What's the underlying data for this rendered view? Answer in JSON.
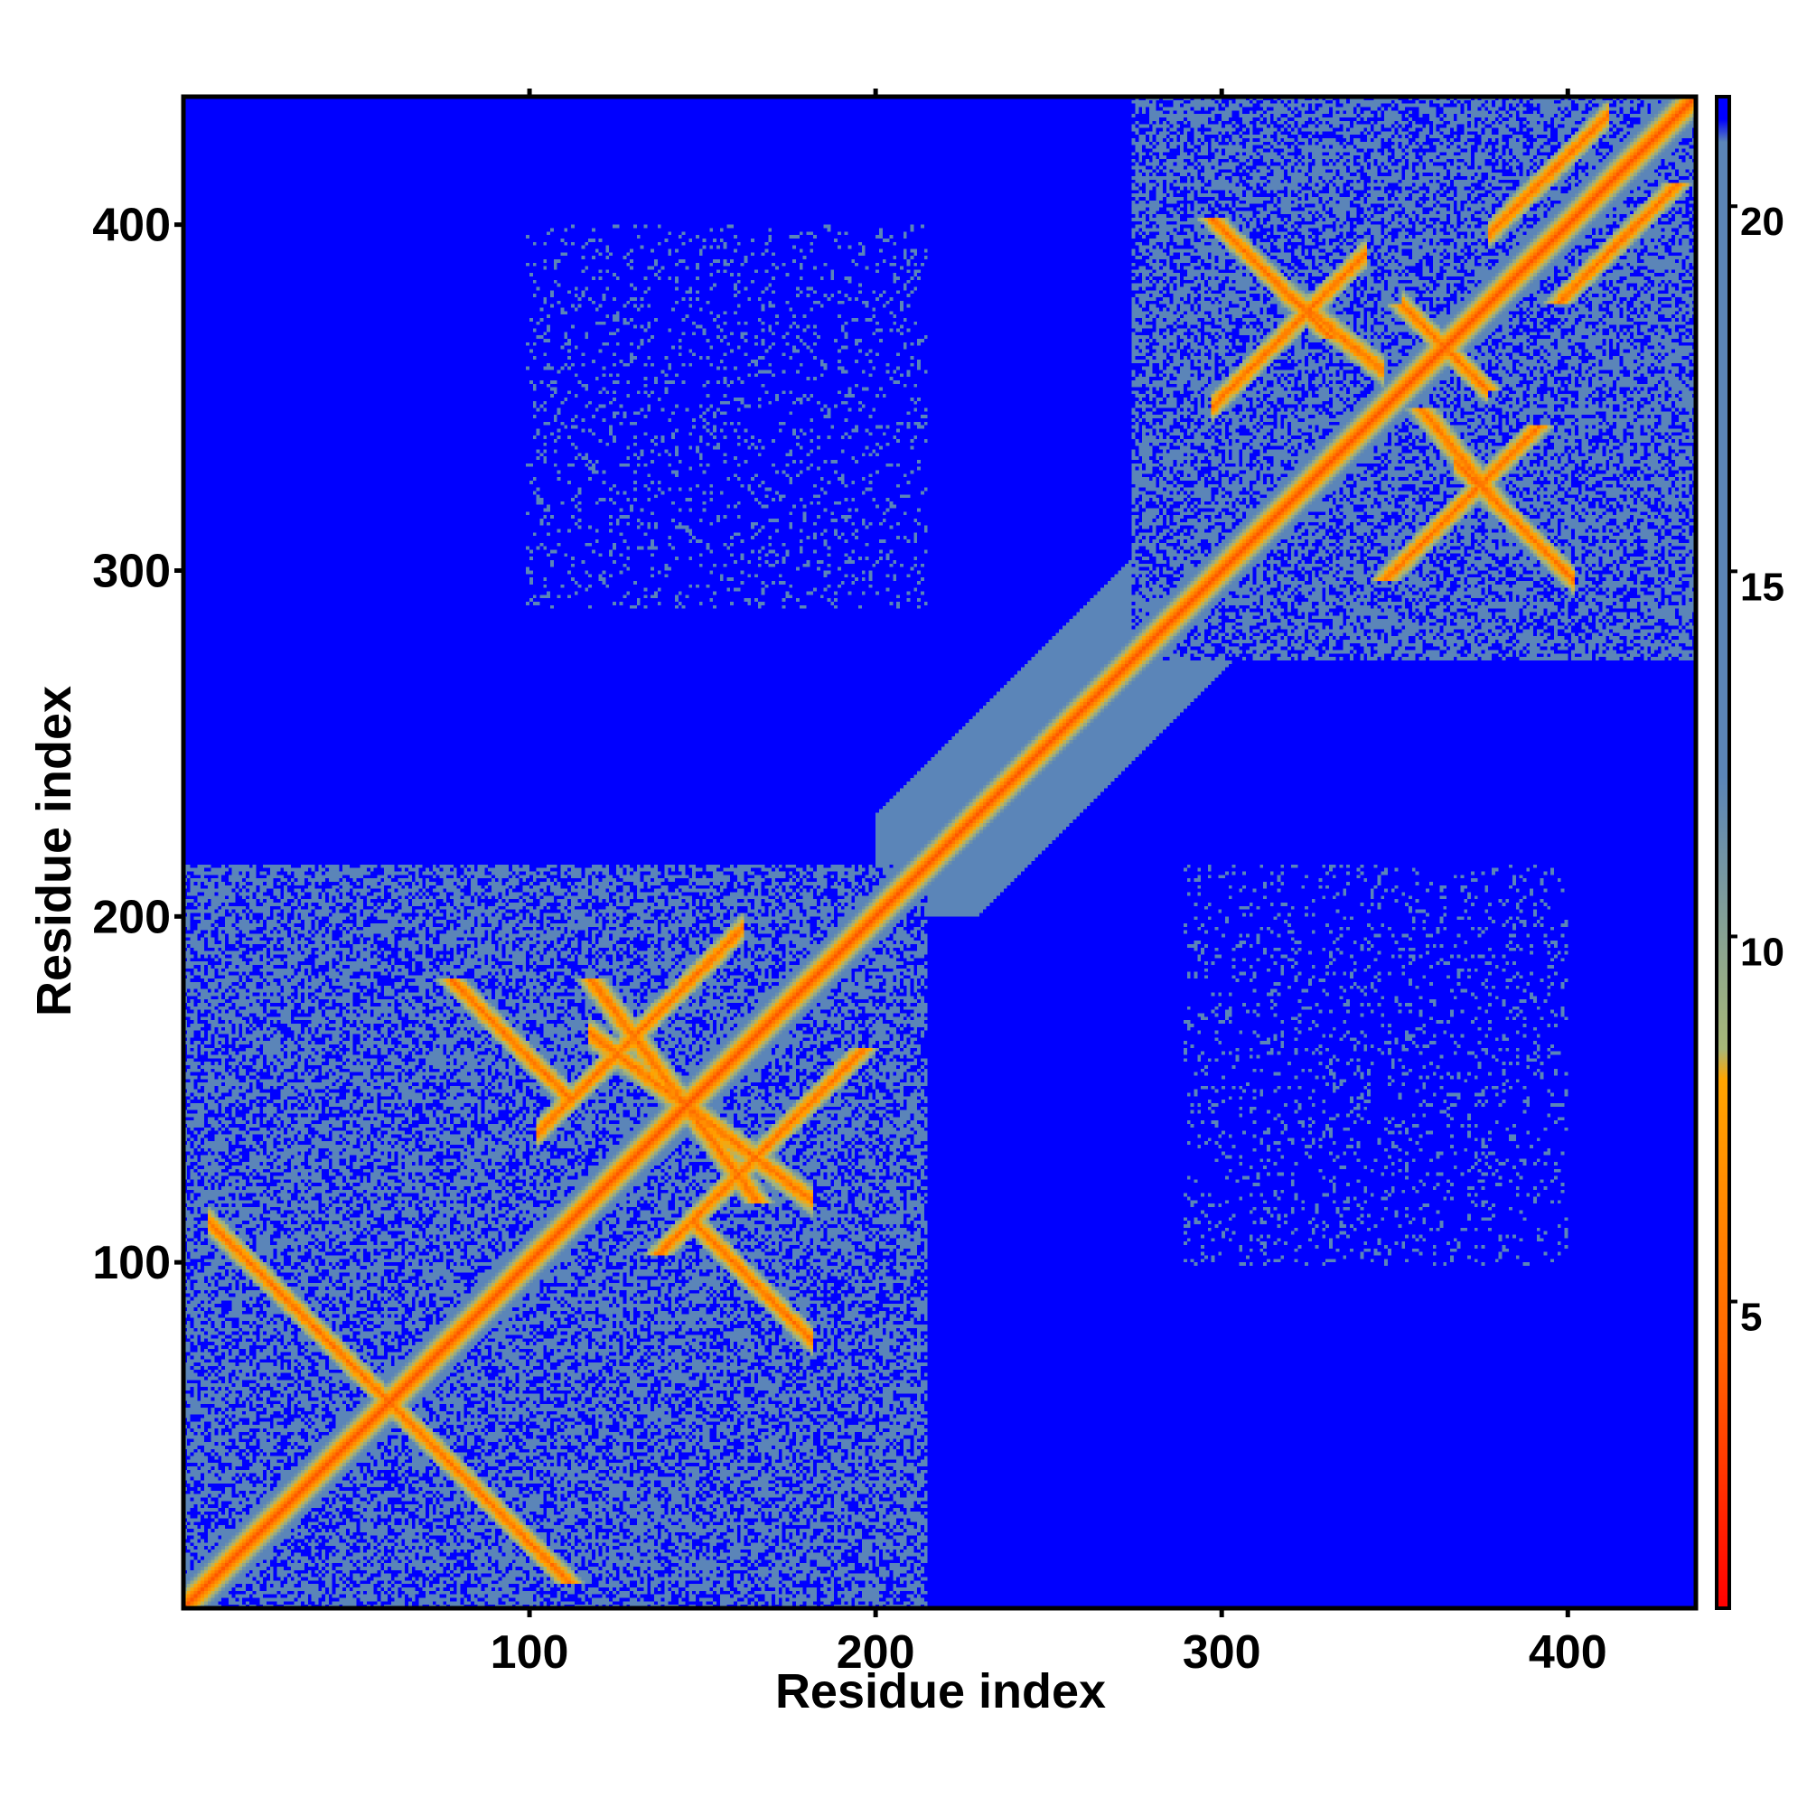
{
  "chart_data": {
    "type": "heatmap",
    "title": "",
    "xlabel": "Residue index",
    "ylabel": "Residue index",
    "xlim": [
      0,
      437
    ],
    "ylim": [
      0,
      437
    ],
    "x_ticks": [
      100,
      200,
      300,
      400
    ],
    "y_ticks": [
      100,
      200,
      300,
      400
    ],
    "colorbar": {
      "range": [
        0.8,
        21.5
      ],
      "ticks": [
        5,
        10,
        15,
        20
      ],
      "colors": [
        "#ff0000",
        "#ff6600",
        "#ffa500",
        "#a8b878",
        "#5b85b8",
        "#0000ff"
      ]
    },
    "domains": [
      {
        "start": 1,
        "end": 215
      },
      {
        "start": 275,
        "end": 437
      }
    ],
    "contact_features": [
      {
        "type": "parallel",
        "offset": 4,
        "range": [
          20,
          420
        ]
      },
      {
        "type": "antiparallel",
        "x": [
          10,
          40
        ],
        "y": [
          110,
          80
        ]
      },
      {
        "type": "antiparallel",
        "x": [
          60,
          85
        ],
        "y": [
          60,
          35
        ]
      },
      {
        "type": "parallel",
        "x": [
          105,
          160
        ],
        "y": [
          140,
          195
        ]
      },
      {
        "type": "antiparallel",
        "x": [
          150,
          180
        ],
        "y": [
          110,
          80
        ]
      },
      {
        "type": "antiparallel",
        "x": [
          120,
          180
        ],
        "y": [
          165,
          120
        ]
      },
      {
        "type": "parallel",
        "x": [
          300,
          340
        ],
        "y": [
          350,
          390
        ]
      },
      {
        "type": "antiparallel",
        "x": [
          355,
          375
        ],
        "y": [
          375,
          355
        ]
      },
      {
        "type": "antiparallel",
        "x": [
          320,
          345
        ],
        "y": [
          380,
          360
        ]
      },
      {
        "type": "parallel",
        "x": [
          380,
          410
        ],
        "y": [
          400,
          430
        ]
      },
      {
        "type": "antiparallel",
        "x": [
          370,
          400
        ],
        "y": [
          330,
          300
        ]
      }
    ]
  }
}
